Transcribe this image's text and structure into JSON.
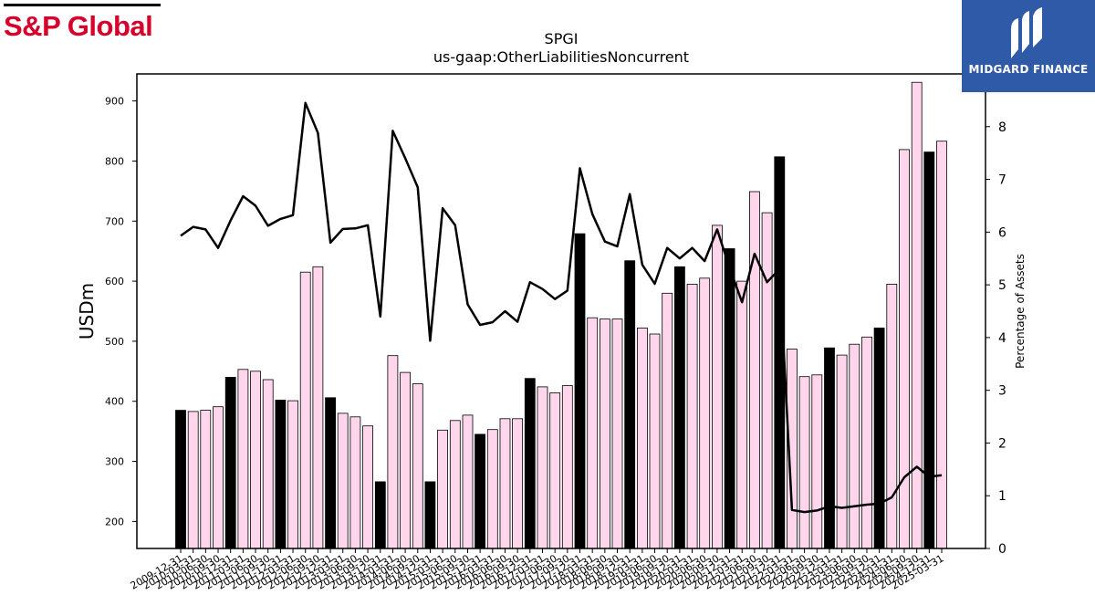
{
  "branding": {
    "left_logo": "S&P Global",
    "right_logo": "MIDGARD FINANCE",
    "brand_color": "#d6002a",
    "badge_color": "#2f5aa8"
  },
  "chart_data": {
    "type": "bar",
    "title": "SPGI",
    "subtitle": "us-gaap:OtherLiabilitiesNoncurrent",
    "ylabel": "USDm",
    "y2label": "Percentage of Assets",
    "ylim": [
      155,
      945
    ],
    "y2lim": [
      0,
      9
    ],
    "yticks": [
      200,
      300,
      400,
      500,
      600,
      700,
      800,
      900
    ],
    "y2ticks": [
      0,
      1,
      2,
      3,
      4,
      5,
      6,
      7,
      8
    ],
    "bar_fill_annual": "#000000",
    "bar_fill_quarter": "#ffd6ec",
    "line_color": "#000000",
    "categories": [
      "2009-12-31",
      "2010-03-31",
      "2010-06-30",
      "2010-09-30",
      "2010-12-31",
      "2011-03-31",
      "2011-06-30",
      "2011-09-30",
      "2011-12-31",
      "2012-03-31",
      "2012-06-30",
      "2012-09-30",
      "2012-12-31",
      "2013-03-31",
      "2013-06-30",
      "2013-09-30",
      "2013-12-31",
      "2014-03-31",
      "2014-06-30",
      "2014-09-30",
      "2014-12-31",
      "2015-03-31",
      "2015-06-30",
      "2015-09-30",
      "2015-12-31",
      "2016-03-31",
      "2016-06-30",
      "2016-09-30",
      "2016-12-31",
      "2017-03-31",
      "2017-06-30",
      "2017-09-30",
      "2017-12-31",
      "2018-03-31",
      "2018-06-30",
      "2018-09-30",
      "2018-12-31",
      "2019-03-31",
      "2019-06-30",
      "2019-09-30",
      "2019-12-31",
      "2020-03-31",
      "2020-06-30",
      "2020-09-30",
      "2020-12-31",
      "2021-03-31",
      "2021-06-30",
      "2021-09-30",
      "2021-12-31",
      "2022-03-31",
      "2022-06-30",
      "2022-09-30",
      "2022-12-31",
      "2023-03-31",
      "2023-06-30",
      "2023-09-30",
      "2023-12-31",
      "2024-03-31",
      "2024-06-30",
      "2024-09-30",
      "2024-12-31",
      "2025-03-31"
    ],
    "series": [
      {
        "type": "bar",
        "axis": "left",
        "values": [
          385,
          383,
          385,
          391,
          440,
          453,
          450,
          436,
          402,
          401,
          615,
          624,
          406,
          380,
          374,
          359,
          266,
          476,
          448,
          429,
          266,
          352,
          368,
          377,
          345,
          353,
          371,
          371,
          438,
          424,
          414,
          426,
          679,
          539,
          537,
          537,
          634,
          522,
          512,
          580,
          624,
          595,
          605,
          693,
          654,
          600,
          749,
          714,
          807,
          487,
          441,
          444,
          489,
          477,
          495,
          507,
          522,
          595,
          819,
          931,
          815,
          833
        ]
      },
      {
        "type": "line",
        "axis": "right",
        "values": [
          5.93,
          6.1,
          6.05,
          5.7,
          6.22,
          6.68,
          6.5,
          6.12,
          6.25,
          6.32,
          8.45,
          7.88,
          5.8,
          6.06,
          6.07,
          6.13,
          4.4,
          7.92,
          7.4,
          6.85,
          3.94,
          6.45,
          6.13,
          4.63,
          4.24,
          4.29,
          4.5,
          4.3,
          5.05,
          4.92,
          4.73,
          4.89,
          7.21,
          6.34,
          5.82,
          5.73,
          6.72,
          5.38,
          5.02,
          5.7,
          5.5,
          5.7,
          5.45,
          6.05,
          5.32,
          4.67,
          5.59,
          5.05,
          5.3,
          0.73,
          0.69,
          0.72,
          0.8,
          0.77,
          0.8,
          0.83,
          0.85,
          0.97,
          1.35,
          1.55,
          1.36,
          1.39
        ]
      }
    ]
  }
}
